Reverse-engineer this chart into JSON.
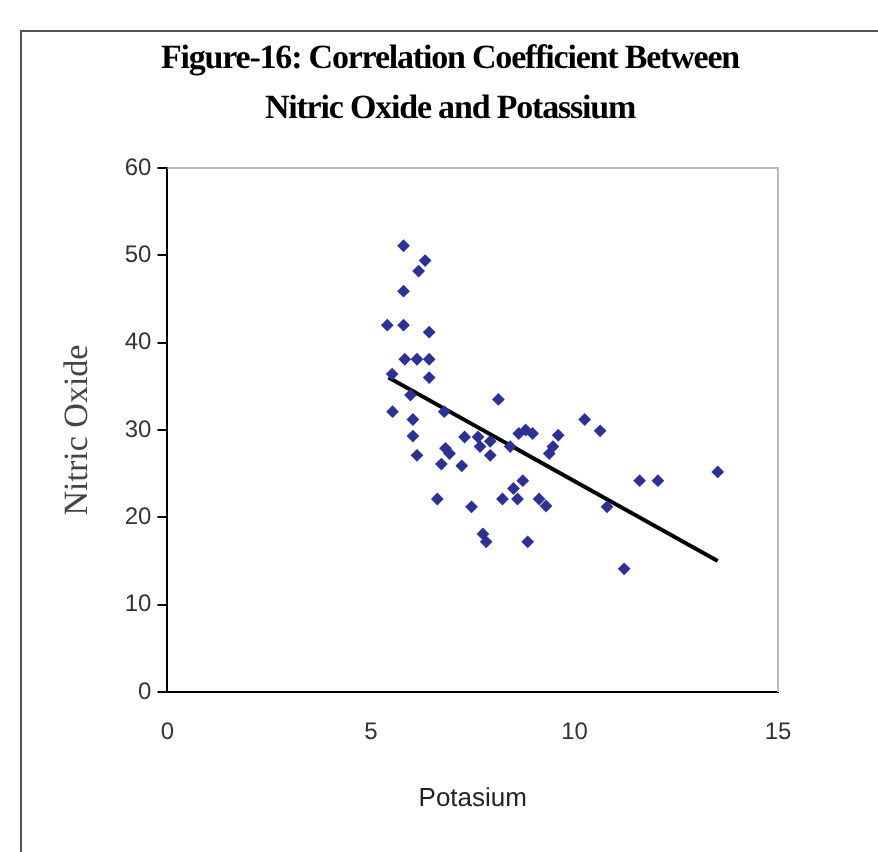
{
  "chart_data": {
    "type": "scatter",
    "title": "Figure-16: Correlation Coefficient Between Nitric Oxide and Potassium",
    "xlabel": "Potasium",
    "ylabel": "Nitric Oxide",
    "xlim": [
      0,
      15
    ],
    "xticks": [
      0,
      5,
      10,
      15
    ],
    "ylim": [
      0,
      60
    ],
    "yticks": [
      0,
      10,
      20,
      30,
      40,
      50,
      60
    ],
    "grid": false,
    "marker": "diamond",
    "series": [
      {
        "type": "scatter",
        "color": "#2e3192",
        "x": [
          5.8,
          5.8,
          6.17,
          6.33,
          5.4,
          5.8,
          6.43,
          5.83,
          6.13,
          6.43,
          6.43,
          5.52,
          5.97,
          5.53,
          6.03,
          6.03,
          6.13,
          6.63,
          6.8,
          6.73,
          6.83,
          6.93,
          7.23,
          7.3,
          7.47,
          7.63,
          7.68,
          7.75,
          7.83,
          7.93,
          7.93,
          8.13,
          8.23,
          8.5,
          8.6,
          8.73,
          8.63,
          8.8,
          8.97,
          8.85,
          9.13,
          9.3,
          9.38,
          9.47,
          9.6,
          10.25,
          10.63,
          10.8,
          11.22,
          11.6,
          12.05,
          13.52,
          8.42
        ],
        "values": [
          51.1,
          45.9,
          48.2,
          49.4,
          42,
          42,
          41.2,
          38.1,
          38.1,
          38.1,
          36,
          36.4,
          34,
          32.1,
          31.2,
          29.3,
          27.1,
          22.1,
          32.1,
          26.1,
          27.9,
          27.3,
          25.9,
          29.2,
          21.2,
          29.2,
          28.1,
          18.1,
          17.2,
          28.7,
          27.1,
          33.5,
          22.1,
          23.3,
          22.1,
          24.2,
          29.6,
          30,
          29.6,
          17.2,
          22.1,
          21.3,
          27.3,
          28.1,
          29.4,
          31.2,
          29.9,
          21.2,
          14.1,
          24.2,
          24.2,
          25.2,
          28.1
        ]
      },
      {
        "type": "line",
        "color": "#000000",
        "marker": "none",
        "x": [
          5.43,
          13.52
        ],
        "values": [
          36,
          15
        ]
      }
    ]
  }
}
